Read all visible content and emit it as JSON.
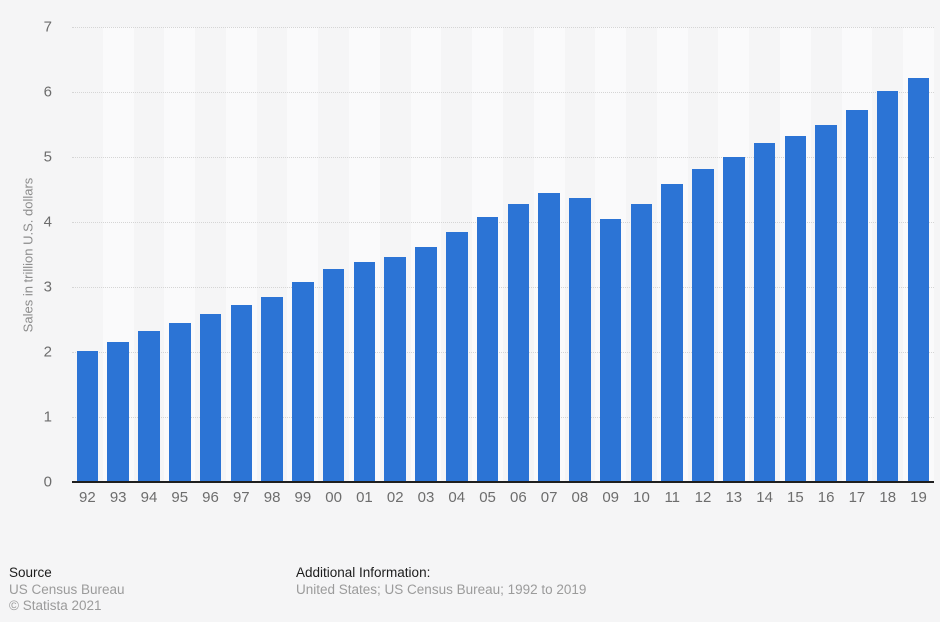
{
  "page_bg": "#f5f5f6",
  "chart_data": {
    "type": "bar",
    "title": "",
    "xlabel": "",
    "ylabel": "Sales in trillion U.S. dollars",
    "categories": [
      "92",
      "93",
      "94",
      "95",
      "96",
      "97",
      "98",
      "99",
      "00",
      "01",
      "02",
      "03",
      "04",
      "05",
      "06",
      "07",
      "08",
      "09",
      "10",
      "11",
      "12",
      "13",
      "14",
      "15",
      "16",
      "17",
      "18",
      "19"
    ],
    "values": [
      2.01,
      2.15,
      2.32,
      2.44,
      2.58,
      2.72,
      2.85,
      3.07,
      3.28,
      3.38,
      3.46,
      3.61,
      3.85,
      4.07,
      4.28,
      4.44,
      4.37,
      4.04,
      4.28,
      4.58,
      4.82,
      5.0,
      5.21,
      5.33,
      5.5,
      5.73,
      6.01,
      6.21
    ],
    "ylim": [
      0,
      7
    ],
    "yticks": [
      0,
      1,
      2,
      3,
      4,
      5,
      6,
      7
    ],
    "grid": "horizontal-dotted",
    "legend": "none",
    "bar_color": "#2c74d5",
    "band_color_light": "#fafafb",
    "gridline_color": "#d5d5d5",
    "axis_line_color": "#1f1f1f"
  },
  "footer": {
    "source_label": "Source",
    "source_value": "US Census Bureau",
    "copyright": "© Statista 2021",
    "additional_label": "Additional Information:",
    "additional_value": "United States; US Census Bureau; 1992 to 2019"
  }
}
